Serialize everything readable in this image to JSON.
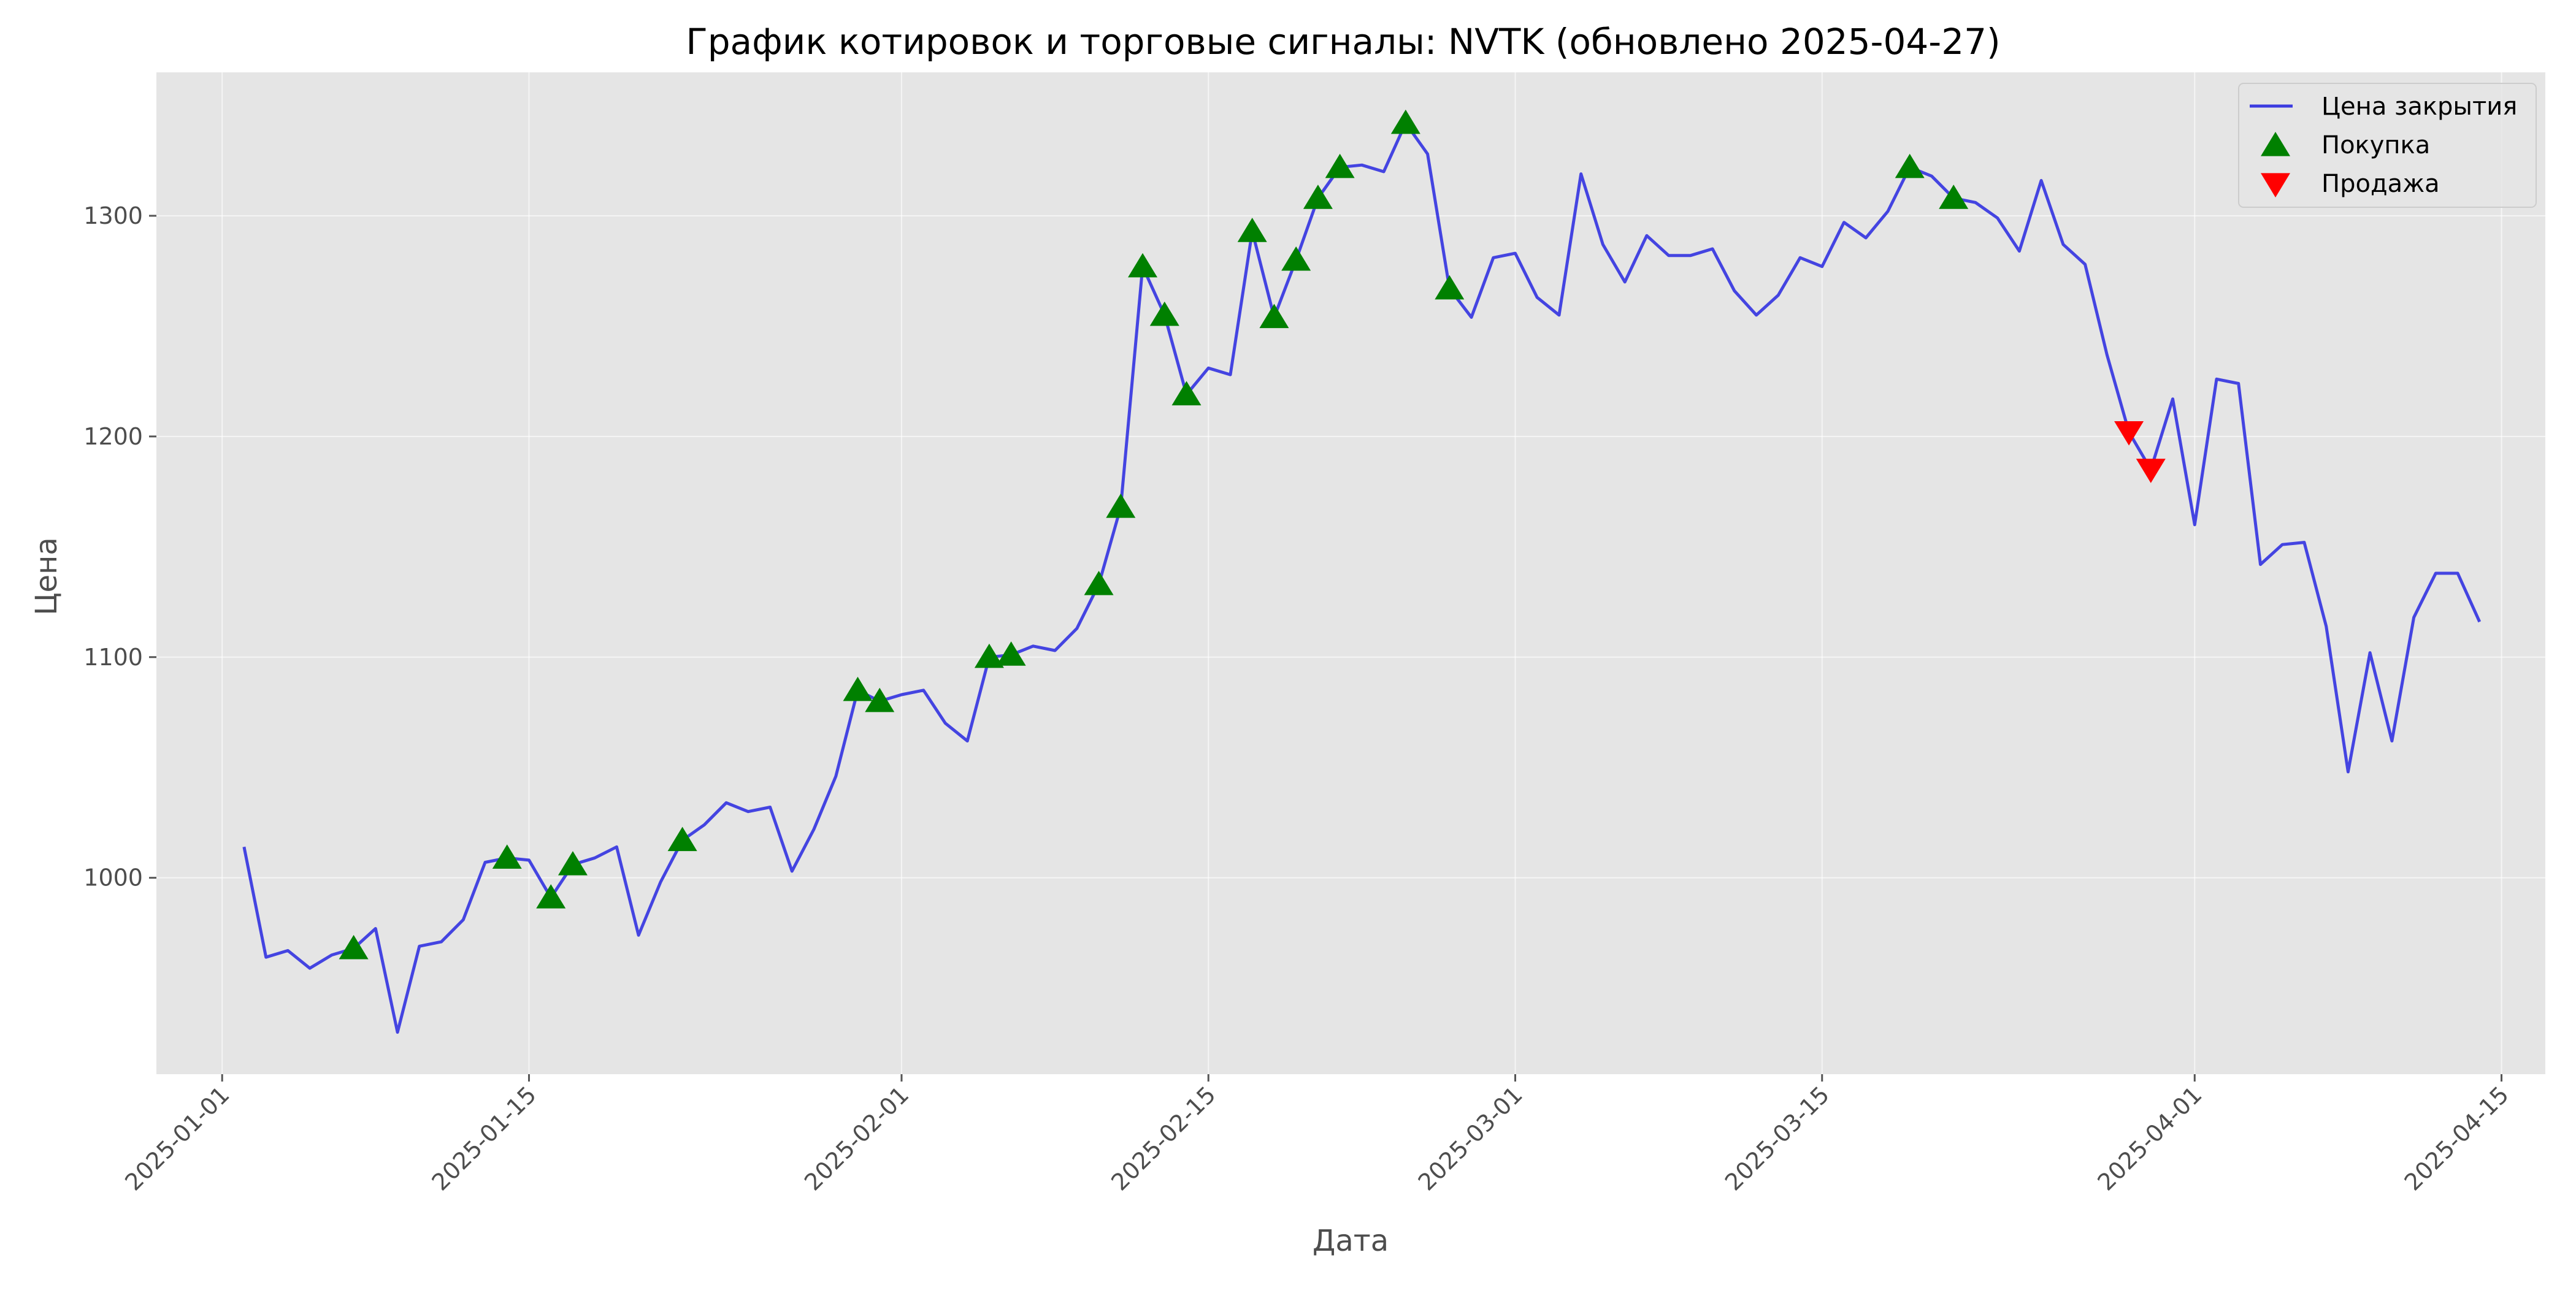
{
  "colors": {
    "background": "#ffffff",
    "plot_background": "#e5e5e5",
    "grid": "#ffffff",
    "price_line": "#3b3be0",
    "buy_marker": "#008000",
    "sell_marker": "#ff0000"
  },
  "chart_data": {
    "type": "line",
    "title": "График котировок и торговые сигналы: NVTK (обновлено 2025-04-27)",
    "xlabel": "Дата",
    "ylabel": "Цена",
    "grid": true,
    "legend_position": "top-right",
    "xlim": [
      "2024-12-29",
      "2025-04-17"
    ],
    "ylim": [
      911,
      1365
    ],
    "x_ticks": [
      "2025-01-01",
      "2025-01-15",
      "2025-02-01",
      "2025-02-15",
      "2025-03-01",
      "2025-03-15",
      "2025-04-01",
      "2025-04-15"
    ],
    "y_ticks": [
      1000,
      1100,
      1200,
      1300
    ],
    "series": [
      {
        "name": "Цена закрытия",
        "type": "line",
        "x": [
          "2025-01-02",
          "2025-01-03",
          "2025-01-04",
          "2025-01-05",
          "2025-01-06",
          "2025-01-07",
          "2025-01-08",
          "2025-01-09",
          "2025-01-10",
          "2025-01-11",
          "2025-01-12",
          "2025-01-13",
          "2025-01-14",
          "2025-01-15",
          "2025-01-16",
          "2025-01-17",
          "2025-01-18",
          "2025-01-19",
          "2025-01-20",
          "2025-01-21",
          "2025-01-22",
          "2025-01-23",
          "2025-01-24",
          "2025-01-25",
          "2025-01-26",
          "2025-01-27",
          "2025-01-28",
          "2025-01-29",
          "2025-01-30",
          "2025-01-31",
          "2025-02-01",
          "2025-02-02",
          "2025-02-03",
          "2025-02-04",
          "2025-02-05",
          "2025-02-06",
          "2025-02-07",
          "2025-02-08",
          "2025-02-09",
          "2025-02-10",
          "2025-02-11",
          "2025-02-12",
          "2025-02-13",
          "2025-02-14",
          "2025-02-15",
          "2025-02-16",
          "2025-02-17",
          "2025-02-18",
          "2025-02-19",
          "2025-02-20",
          "2025-02-21",
          "2025-02-22",
          "2025-02-23",
          "2025-02-24",
          "2025-02-25",
          "2025-02-26",
          "2025-02-27",
          "2025-02-28",
          "2025-03-01",
          "2025-03-02",
          "2025-03-03",
          "2025-03-04",
          "2025-03-05",
          "2025-03-06",
          "2025-03-07",
          "2025-03-08",
          "2025-03-09",
          "2025-03-10",
          "2025-03-11",
          "2025-03-12",
          "2025-03-13",
          "2025-03-14",
          "2025-03-15",
          "2025-03-16",
          "2025-03-17",
          "2025-03-18",
          "2025-03-19",
          "2025-03-20",
          "2025-03-21",
          "2025-03-22",
          "2025-03-23",
          "2025-03-24",
          "2025-03-25",
          "2025-03-26",
          "2025-03-27",
          "2025-03-28",
          "2025-03-29",
          "2025-03-30",
          "2025-03-31",
          "2025-04-01",
          "2025-04-02",
          "2025-04-03",
          "2025-04-04",
          "2025-04-05",
          "2025-04-06",
          "2025-04-07",
          "2025-04-08",
          "2025-04-09",
          "2025-04-10",
          "2025-04-11",
          "2025-04-12",
          "2025-04-13",
          "2025-04-14"
        ],
        "values": [
          1014,
          964,
          967,
          959,
          965,
          968,
          977,
          930,
          969,
          971,
          981,
          1007,
          1009,
          1008,
          991,
          1006,
          1009,
          1014,
          974,
          998,
          1017,
          1024,
          1034,
          1030,
          1032,
          1003,
          1022,
          1046,
          1085,
          1080,
          1083,
          1085,
          1070,
          1062,
          1100,
          1101,
          1105,
          1103,
          1113,
          1133,
          1168,
          1277,
          1255,
          1219,
          1231,
          1228,
          1293,
          1254,
          1280,
          1308,
          1322,
          1323,
          1320,
          1342,
          1328,
          1267,
          1254,
          1281,
          1283,
          1263,
          1255,
          1319,
          1287,
          1270,
          1291,
          1282,
          1282,
          1285,
          1266,
          1255,
          1264,
          1281,
          1277,
          1297,
          1290,
          1302,
          1322,
          1318,
          1308,
          1306,
          1299,
          1284,
          1316,
          1287,
          1278,
          1237,
          1202,
          1185,
          1217,
          1160,
          1226,
          1224,
          1142,
          1151,
          1152,
          1114,
          1048,
          1102,
          1062,
          1118,
          1138,
          1138,
          1116
        ]
      },
      {
        "name": "Покупка",
        "type": "scatter",
        "marker": "triangle-up",
        "x": [
          "2025-01-07",
          "2025-01-14",
          "2025-01-16",
          "2025-01-17",
          "2025-01-22",
          "2025-01-30",
          "2025-01-31",
          "2025-02-05",
          "2025-02-06",
          "2025-02-10",
          "2025-02-11",
          "2025-02-12",
          "2025-02-13",
          "2025-02-14",
          "2025-02-17",
          "2025-02-18",
          "2025-02-19",
          "2025-02-20",
          "2025-02-21",
          "2025-02-24",
          "2025-02-26",
          "2025-03-19",
          "2025-03-21"
        ],
        "values": [
          968,
          1009,
          991,
          1006,
          1017,
          1085,
          1080,
          1100,
          1101,
          1133,
          1168,
          1277,
          1255,
          1219,
          1293,
          1254,
          1280,
          1308,
          1322,
          1342,
          1267,
          1322,
          1308
        ]
      },
      {
        "name": "Продажа",
        "type": "scatter",
        "marker": "triangle-down",
        "x": [
          "2025-03-29",
          "2025-03-30"
        ],
        "values": [
          1202,
          1185
        ]
      }
    ]
  }
}
